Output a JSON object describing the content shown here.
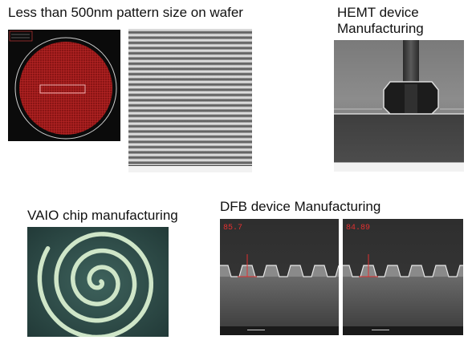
{
  "captions": {
    "wafer": "Less than 500nm pattern size on wafer",
    "hemt": "HEMT device\nManufacturing",
    "vaio": "VAIO chip manufacturing",
    "dfb": "DFB device Manufacturing"
  },
  "measurements": {
    "dfb_left": "85.7",
    "dfb_right": "84.89"
  },
  "colors": {
    "wafer_fill": "#8a1414",
    "wafer_background": "#0b0b0b",
    "spiral_line": "#cfe6c8",
    "spiral_background": "#2f4d4a",
    "measurement_red": "#e03030"
  },
  "icons": {
    "wafer_image": "wafer-pattern-image",
    "line_pattern_image": "sem-line-grating-image",
    "hemt_image": "hemt-cross-section-image",
    "spiral_image": "spiral-chip-image",
    "dfb_images": "dfb-grating-cross-section-image"
  }
}
